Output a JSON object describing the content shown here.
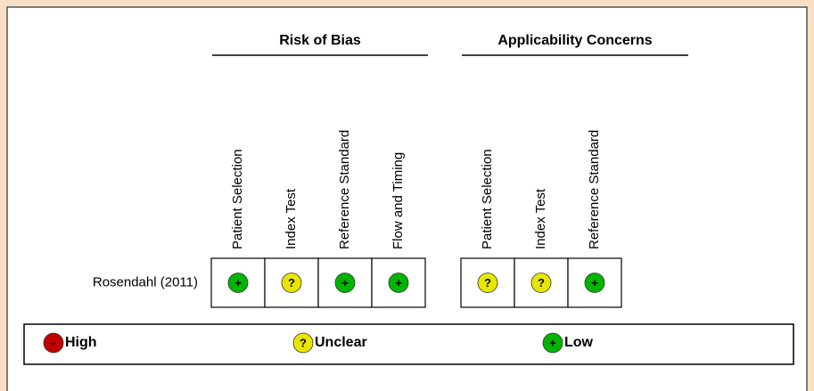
{
  "headings": {
    "risk_of_bias": "Risk of Bias",
    "applicability": "Applicability Concerns"
  },
  "risk_columns": [
    "Patient Selection",
    "Index Test",
    "Reference Standard",
    "Flow and Timing"
  ],
  "applicability_columns": [
    "Patient Selection",
    "Index Test",
    "Reference Standard"
  ],
  "rows": [
    {
      "study": "Rosendahl (2011)",
      "risk": [
        "+",
        "?",
        "+",
        "+"
      ],
      "applicability": [
        "?",
        "?",
        "+"
      ]
    }
  ],
  "legend": [
    {
      "symbol": "–",
      "label": "High",
      "color": "#c00000"
    },
    {
      "symbol": "?",
      "label": "Unclear",
      "color": "#e6e600"
    },
    {
      "symbol": "+",
      "label": "Low",
      "color": "#00b400"
    }
  ]
}
